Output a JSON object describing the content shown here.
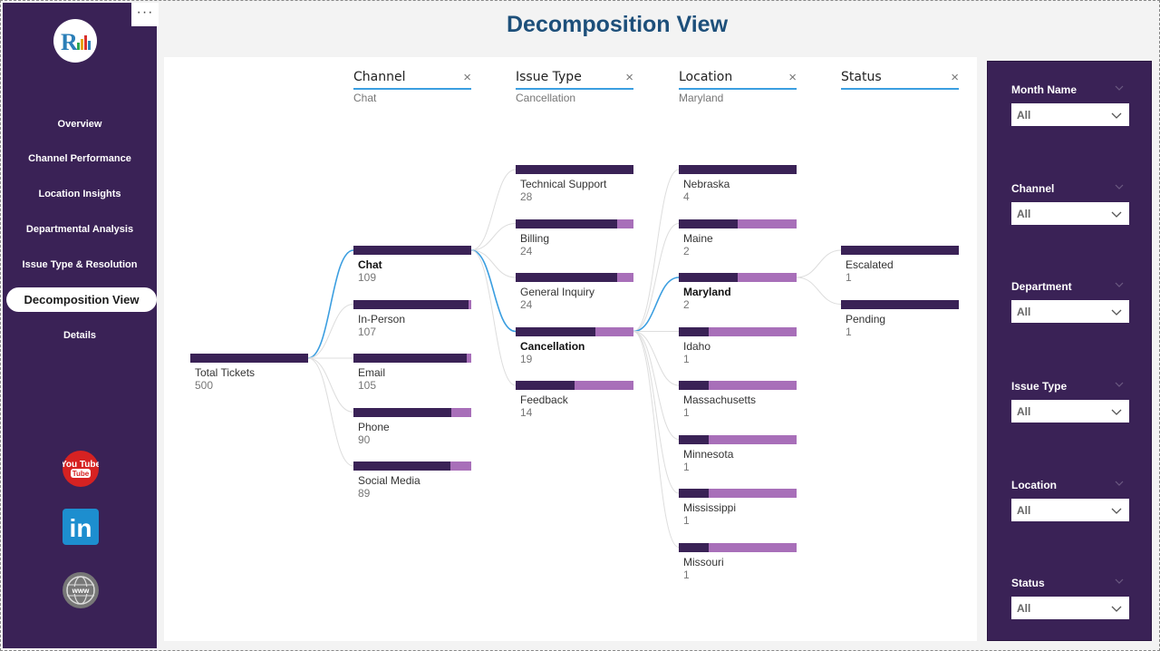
{
  "sidebar": {
    "more_label": "···",
    "nav": [
      {
        "label": "Overview",
        "active": false
      },
      {
        "label": "Channel Performance",
        "active": false
      },
      {
        "label": "Location Insights",
        "active": false
      },
      {
        "label": "Departmental Analysis",
        "active": false
      },
      {
        "label": "Issue Type & Resolution",
        "active": false
      },
      {
        "label": "Decomposition View",
        "active": true
      },
      {
        "label": "Details",
        "active": false
      }
    ],
    "social": [
      {
        "icon": "youtube-icon",
        "label": "You Tube"
      },
      {
        "icon": "linkedin-icon",
        "label": "in"
      },
      {
        "icon": "globe-icon",
        "label": "www"
      }
    ]
  },
  "page": {
    "title": "Decomposition View"
  },
  "colors": {
    "sidebar": "#3a2256",
    "bar_dark": "#3a2256",
    "bar_light": "#a86fb9",
    "link": "#3b9ee0",
    "title": "#1d4f7a"
  },
  "tree": {
    "root": {
      "label": "Total Tickets",
      "value": 500
    },
    "levels": [
      {
        "title": "Channel",
        "selected": "Chat",
        "nodes": [
          {
            "label": "Chat",
            "value": 109,
            "fill": 1.0,
            "selected": true
          },
          {
            "label": "In-Person",
            "value": 107,
            "fill": 0.98,
            "selected": false
          },
          {
            "label": "Email",
            "value": 105,
            "fill": 0.96,
            "selected": false
          },
          {
            "label": "Phone",
            "value": 90,
            "fill": 0.83,
            "selected": false
          },
          {
            "label": "Social Media",
            "value": 89,
            "fill": 0.82,
            "selected": false
          }
        ]
      },
      {
        "title": "Issue Type",
        "selected": "Cancellation",
        "nodes": [
          {
            "label": "Technical Support",
            "value": 28,
            "fill": 1.0,
            "selected": false
          },
          {
            "label": "Billing",
            "value": 24,
            "fill": 0.86,
            "selected": false
          },
          {
            "label": "General Inquiry",
            "value": 24,
            "fill": 0.86,
            "selected": false
          },
          {
            "label": "Cancellation",
            "value": 19,
            "fill": 0.68,
            "selected": true
          },
          {
            "label": "Feedback",
            "value": 14,
            "fill": 0.5,
            "selected": false
          }
        ]
      },
      {
        "title": "Location",
        "selected": "Maryland",
        "nodes": [
          {
            "label": "Nebraska",
            "value": 4,
            "fill": 1.0,
            "selected": false
          },
          {
            "label": "Maine",
            "value": 2,
            "fill": 0.5,
            "selected": false
          },
          {
            "label": "Maryland",
            "value": 2,
            "fill": 0.5,
            "selected": true
          },
          {
            "label": "Idaho",
            "value": 1,
            "fill": 0.25,
            "selected": false
          },
          {
            "label": "Massachusetts",
            "value": 1,
            "fill": 0.25,
            "selected": false
          },
          {
            "label": "Minnesota",
            "value": 1,
            "fill": 0.25,
            "selected": false
          },
          {
            "label": "Mississippi",
            "value": 1,
            "fill": 0.25,
            "selected": false
          },
          {
            "label": "Missouri",
            "value": 1,
            "fill": 0.25,
            "selected": false
          }
        ]
      },
      {
        "title": "Status",
        "selected": "",
        "nodes": [
          {
            "label": "Escalated",
            "value": 1,
            "fill": 1.0,
            "selected": false
          },
          {
            "label": "Pending",
            "value": 1,
            "fill": 1.0,
            "selected": false
          }
        ]
      }
    ]
  },
  "filters": [
    {
      "label": "Month Name",
      "value": "All"
    },
    {
      "label": "Channel",
      "value": "All"
    },
    {
      "label": "Department",
      "value": "All"
    },
    {
      "label": "Issue Type",
      "value": "All"
    },
    {
      "label": "Location",
      "value": "All"
    },
    {
      "label": "Status",
      "value": "All"
    }
  ]
}
